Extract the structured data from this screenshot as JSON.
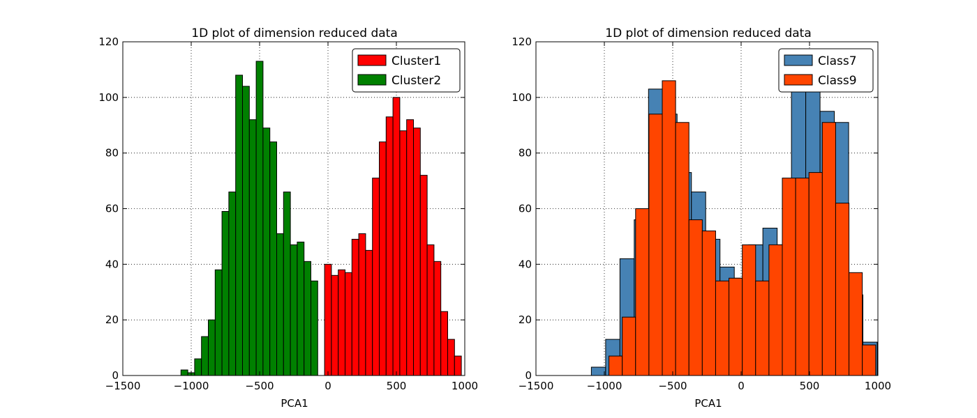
{
  "chart_data": [
    {
      "type": "bar",
      "title": "1D plot of dimension reduced data",
      "xlabel": "PCA1",
      "ylabel": "",
      "xlim": [
        -1500,
        1000
      ],
      "ylim": [
        0,
        120
      ],
      "xticks": [
        "-1500",
        "-1000",
        "-500",
        "0",
        "500",
        "1000"
      ],
      "yticks": [
        "0",
        "20",
        "40",
        "60",
        "80",
        "100",
        "120"
      ],
      "grid": true,
      "legend_position": "top-right",
      "bin_width": 50,
      "series": [
        {
          "name": "Cluster1",
          "color": "#ff0000",
          "bin_starts": [
            -25,
            25,
            75,
            125,
            175,
            225,
            275,
            325,
            375,
            425,
            475,
            525,
            575,
            625,
            675,
            725,
            775,
            825,
            875,
            925,
            975
          ],
          "values": [
            40,
            36,
            38,
            37,
            49,
            51,
            45,
            71,
            84,
            93,
            100,
            88,
            92,
            89,
            72,
            47,
            41,
            23,
            13,
            7,
            0
          ]
        },
        {
          "name": "Cluster2",
          "color": "#008000",
          "bin_starts": [
            -1075,
            -1025,
            -975,
            -925,
            -875,
            -825,
            -775,
            -725,
            -675,
            -625,
            -575,
            -525,
            -475,
            -425,
            -375,
            -325,
            -275,
            -225,
            -175,
            -125,
            -75
          ],
          "values": [
            2,
            1,
            6,
            14,
            20,
            38,
            59,
            66,
            108,
            104,
            92,
            113,
            89,
            84,
            51,
            66,
            47,
            48,
            41,
            34,
            0
          ]
        }
      ]
    },
    {
      "type": "bar",
      "title": "1D plot of dimension reduced data",
      "xlabel": "PCA1",
      "ylabel": "",
      "xlim": [
        -1500,
        1000
      ],
      "ylim": [
        0,
        120
      ],
      "xticks": [
        "-1500",
        "-1000",
        "-500",
        "0",
        "500",
        "1000"
      ],
      "yticks": [
        "0",
        "20",
        "40",
        "60",
        "80",
        "100",
        "120"
      ],
      "grid": true,
      "legend_position": "top-right",
      "series": [
        {
          "name": "Class7",
          "color": "#4682b4",
          "bin_width": 104.5,
          "bin_starts": [
            -1095,
            -990.5,
            -886,
            -781.5,
            -677,
            -572.5,
            -468,
            -363.5,
            -259,
            -154.5,
            -50,
            54.5,
            159,
            263.5,
            368,
            472.5,
            577,
            681.5,
            786,
            890.5
          ],
          "values": [
            3,
            13,
            42,
            56,
            103,
            94,
            73,
            66,
            49,
            39,
            35,
            47,
            53,
            47,
            103,
            104,
            95,
            91,
            29,
            12
          ]
        },
        {
          "name": "Class9",
          "color": "#ff4500",
          "bin_width": 97.5,
          "bin_starts": [
            -966.5,
            -869,
            -771.5,
            -674,
            -576.5,
            -479,
            -381.5,
            -284,
            -186.5,
            -89,
            8.5,
            106,
            203.5,
            301,
            398.5,
            496,
            593.5,
            691,
            788.5,
            886
          ],
          "values": [
            7,
            21,
            60,
            94,
            106,
            91,
            56,
            52,
            34,
            35,
            47,
            34,
            47,
            71,
            71,
            73,
            91,
            62,
            37,
            11
          ]
        }
      ]
    }
  ]
}
